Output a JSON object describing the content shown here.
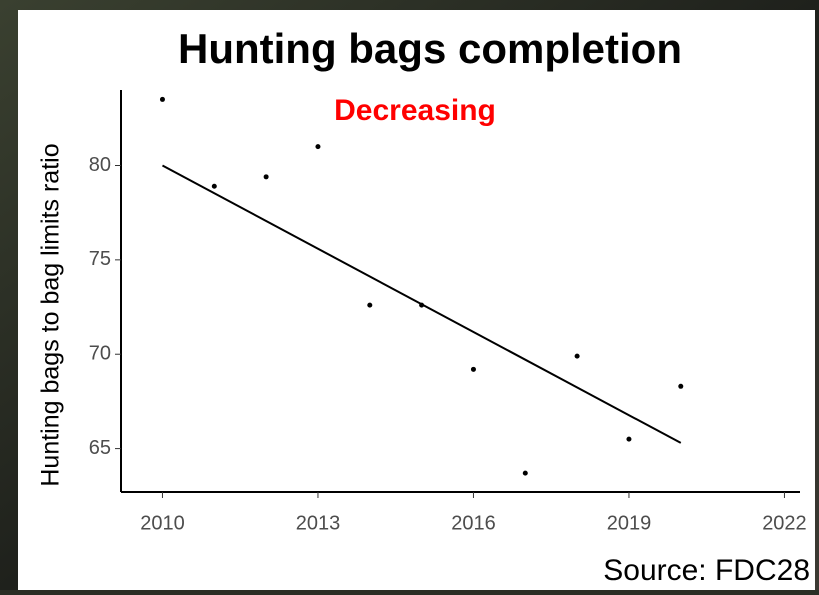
{
  "chart_data": {
    "type": "scatter",
    "title": "Hunting bags completion",
    "annotation": "Decreasing",
    "annotation_color": "#ff0000",
    "y_label": "Hunting bags to bag limits ratio",
    "source": "Source: FDC28",
    "x": [
      2010,
      2011,
      2012,
      2013,
      2014,
      2015,
      2016,
      2017,
      2018,
      2019,
      2020
    ],
    "values": [
      83.5,
      78.9,
      79.4,
      81.0,
      72.6,
      72.6,
      69.2,
      63.7,
      69.9,
      65.5,
      68.3
    ],
    "color": "#000000",
    "trend": {
      "x": [
        2010,
        2020
      ],
      "values": [
        80.0,
        65.3
      ]
    },
    "xlim": [
      2009.2,
      2022.3
    ],
    "xticks": [
      2010,
      2013,
      2016,
      2019,
      2022
    ],
    "ylim": [
      62.7,
      84.0
    ],
    "yticks": [
      65,
      70,
      75,
      80
    ]
  }
}
